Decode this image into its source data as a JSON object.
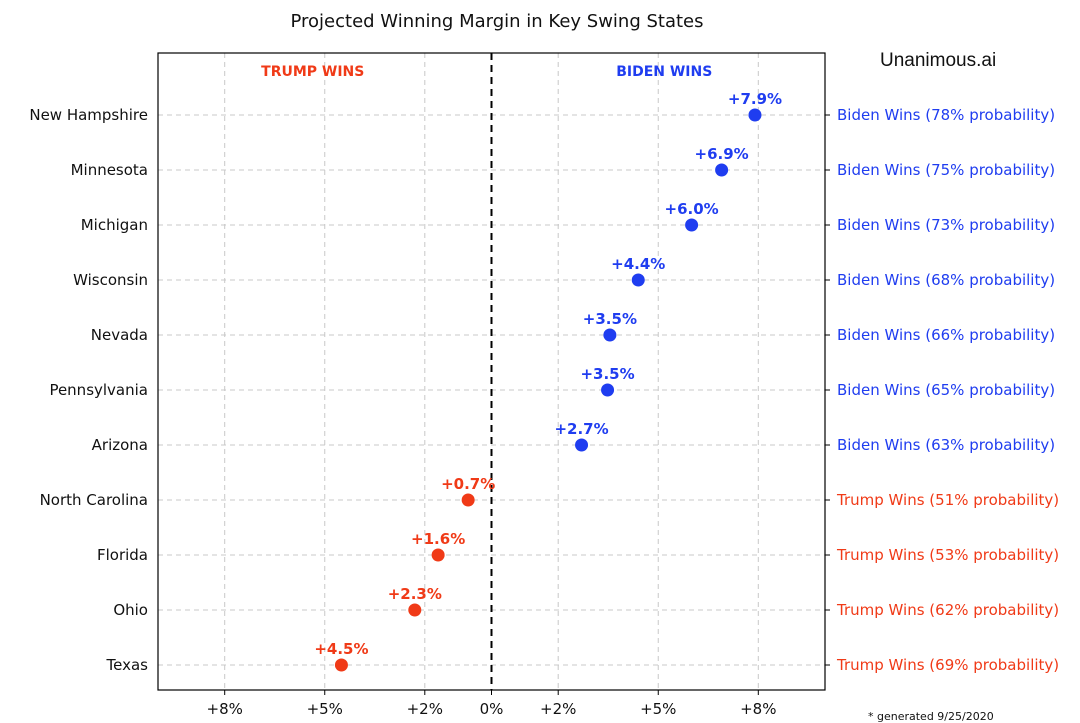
{
  "brand": "Unanimous.ai",
  "generated_note": "* generated 9/25/2020",
  "colors": {
    "biden": "#1f3df0",
    "trump": "#f03a17",
    "grid": "#c8c8c8"
  },
  "chart_data": {
    "type": "scatter",
    "title": "Projected Winning Margin in Key Swing States",
    "xlabel": "",
    "ylabel": "",
    "xlim": [
      -10,
      10
    ],
    "grid": true,
    "x_ticks": [
      {
        "value": -8,
        "label": "+8%"
      },
      {
        "value": -5,
        "label": "+5%"
      },
      {
        "value": -2,
        "label": "+2%"
      },
      {
        "value": 0,
        "label": "0%"
      },
      {
        "value": 2,
        "label": "+2%"
      },
      {
        "value": 5,
        "label": "+5%"
      },
      {
        "value": 8,
        "label": "+8%"
      }
    ],
    "zero_line": true,
    "region_labels": [
      {
        "text": "TRUMP WINS",
        "side": "left",
        "party": "trump"
      },
      {
        "text": "BIDEN WINS",
        "side": "right",
        "party": "biden"
      }
    ],
    "points": [
      {
        "state": "New Hampshire",
        "x": 7.9,
        "label": "+7.9%",
        "party": "biden",
        "outcome": "Biden Wins (78% probability)"
      },
      {
        "state": "Minnesota",
        "x": 6.9,
        "label": "+6.9%",
        "party": "biden",
        "outcome": "Biden Wins (75% probability)"
      },
      {
        "state": "Michigan",
        "x": 6.0,
        "label": "+6.0%",
        "party": "biden",
        "outcome": "Biden Wins (73% probability)"
      },
      {
        "state": "Wisconsin",
        "x": 4.4,
        "label": "+4.4%",
        "party": "biden",
        "outcome": "Biden Wins (68% probability)"
      },
      {
        "state": "Nevada",
        "x": 3.55,
        "label": "+3.5%",
        "party": "biden",
        "outcome": "Biden Wins (66% probability)"
      },
      {
        "state": "Pennsylvania",
        "x": 3.48,
        "label": "+3.5%",
        "party": "biden",
        "outcome": "Biden Wins (65% probability)"
      },
      {
        "state": "Arizona",
        "x": 2.7,
        "label": "+2.7%",
        "party": "biden",
        "outcome": "Biden Wins (63% probability)"
      },
      {
        "state": "North Carolina",
        "x": -0.7,
        "label": "+0.7%",
        "party": "trump",
        "outcome": "Trump Wins (51% probability)"
      },
      {
        "state": "Florida",
        "x": -1.6,
        "label": "+1.6%",
        "party": "trump",
        "outcome": "Trump Wins (53% probability)"
      },
      {
        "state": "Ohio",
        "x": -2.3,
        "label": "+2.3%",
        "party": "trump",
        "outcome": "Trump Wins (62% probability)"
      },
      {
        "state": "Texas",
        "x": -4.5,
        "label": "+4.5%",
        "party": "trump",
        "outcome": "Trump Wins (69% probability)"
      }
    ]
  }
}
